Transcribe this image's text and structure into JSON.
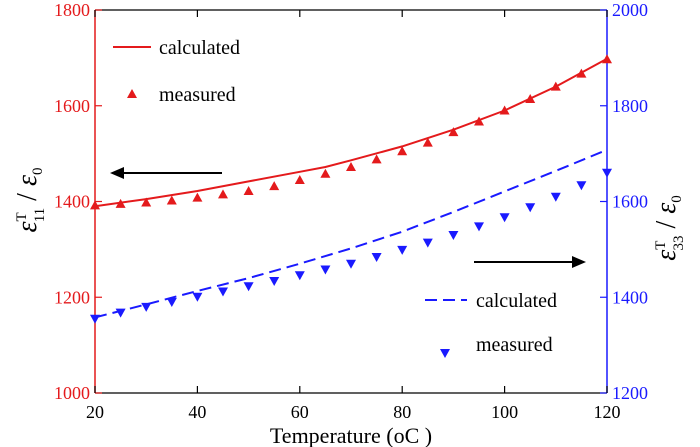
{
  "chart_data": {
    "type": "line",
    "xlabel": "Temperature",
    "xlabel_unit": "(oC )",
    "xlim": [
      20,
      120
    ],
    "xticks": [
      20,
      40,
      60,
      80,
      100,
      120
    ],
    "left_axis": {
      "label_sym": "ε",
      "label_sup": "T",
      "label_sub": "11",
      "label_den": "ε",
      "label_den_sub": "0",
      "ylim": [
        1000,
        1800
      ],
      "ticks": [
        1000,
        1200,
        1400,
        1600,
        1800
      ],
      "color": "#e41a1c"
    },
    "right_axis": {
      "label_sym": "ε",
      "label_sup": "T",
      "label_sub": "33",
      "label_den": "ε",
      "label_den_sub": "0",
      "ylim": [
        1200,
        2000
      ],
      "ticks": [
        1200,
        1400,
        1600,
        1800,
        2000
      ],
      "color": "#1a1aff"
    },
    "series": [
      {
        "name": "calculated",
        "axis": "left",
        "style": "solid-line",
        "color": "#e41a1c",
        "x": [
          20,
          30,
          40,
          50,
          60,
          65,
          70,
          80,
          90,
          100,
          110,
          120
        ],
        "values": [
          1390,
          1405,
          1422,
          1442,
          1462,
          1472,
          1486,
          1515,
          1550,
          1590,
          1640,
          1698
        ]
      },
      {
        "name": "measured",
        "axis": "left",
        "style": "triangle-up",
        "color": "#e41a1c",
        "x": [
          20,
          25,
          30,
          35,
          40,
          45,
          50,
          55,
          60,
          65,
          70,
          75,
          80,
          85,
          90,
          95,
          100,
          105,
          110,
          115,
          120
        ],
        "values": [
          1392,
          1395,
          1398,
          1402,
          1408,
          1415,
          1422,
          1432,
          1445,
          1458,
          1472,
          1488,
          1505,
          1523,
          1545,
          1567,
          1590,
          1614,
          1640,
          1667,
          1697
        ]
      },
      {
        "name": "calculated",
        "axis": "right",
        "style": "dashed-line",
        "color": "#1a1aff",
        "x": [
          20,
          30,
          40,
          50,
          60,
          70,
          80,
          90,
          100,
          110,
          120
        ],
        "values": [
          1358,
          1385,
          1413,
          1440,
          1470,
          1502,
          1537,
          1578,
          1621,
          1664,
          1708
        ]
      },
      {
        "name": "measured",
        "axis": "right",
        "style": "triangle-down",
        "color": "#1a1aff",
        "x": [
          20,
          25,
          30,
          35,
          40,
          45,
          50,
          55,
          60,
          65,
          70,
          75,
          80,
          85,
          90,
          95,
          100,
          105,
          110,
          115,
          120
        ],
        "values": [
          1355,
          1368,
          1380,
          1390,
          1401,
          1412,
          1423,
          1434,
          1446,
          1458,
          1470,
          1484,
          1499,
          1514,
          1530,
          1548,
          1567,
          1588,
          1610,
          1634,
          1660
        ]
      }
    ],
    "legend_top": {
      "position": "top-left",
      "line_label": "calculated",
      "marker_label": "measured"
    },
    "legend_bottom": {
      "position": "bottom-right",
      "line_label": "calculated",
      "marker_label": "measured"
    }
  }
}
